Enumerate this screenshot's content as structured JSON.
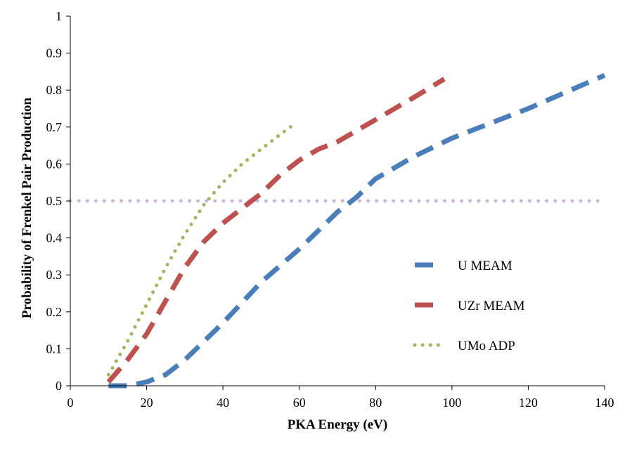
{
  "chart_data": {
    "type": "line",
    "xlabel": "PKA Energy (eV)",
    "ylabel": "Probability of Frenkel Pair Production",
    "xlim": [
      0,
      140
    ],
    "ylim": [
      0,
      1
    ],
    "x_ticks": [
      0,
      20,
      40,
      60,
      80,
      100,
      120,
      140
    ],
    "y_ticks": [
      0,
      0.1,
      0.2,
      0.3,
      0.4,
      0.5,
      0.6,
      0.7,
      0.8,
      0.9,
      1
    ],
    "y_tick_labels": [
      "0",
      "0.1",
      "0.2",
      "0.3",
      "0.4",
      "0.5",
      "0.6",
      "0.7",
      "0.8",
      "0.9",
      "1"
    ],
    "grid": false,
    "legend_position": "right",
    "reference_line": {
      "y": 0.5,
      "color": "#c9b8db"
    },
    "series": [
      {
        "name": "U MEAM",
        "color": "#4a7ebb",
        "style": "dashed",
        "x": [
          10,
          15,
          20,
          25,
          30,
          40,
          50,
          60,
          65,
          70,
          75,
          80,
          90,
          100,
          120,
          140
        ],
        "y": [
          0,
          0,
          0.01,
          0.03,
          0.07,
          0.17,
          0.28,
          0.37,
          0.42,
          0.47,
          0.51,
          0.56,
          0.62,
          0.67,
          0.75,
          0.84
        ]
      },
      {
        "name": "UZr MEAM",
        "color": "#c0504d",
        "style": "dashed",
        "x": [
          10,
          15,
          20,
          25,
          30,
          35,
          40,
          45,
          50,
          55,
          60,
          65,
          70,
          80,
          90,
          98
        ],
        "y": [
          0.01,
          0.07,
          0.14,
          0.23,
          0.32,
          0.39,
          0.44,
          0.48,
          0.52,
          0.57,
          0.61,
          0.64,
          0.66,
          0.72,
          0.78,
          0.83
        ]
      },
      {
        "name": "UMo ADP",
        "color": "#9bbb59",
        "style": "dotted",
        "x": [
          10,
          15,
          20,
          25,
          30,
          35,
          40,
          45,
          50,
          55,
          59
        ],
        "y": [
          0.03,
          0.12,
          0.22,
          0.32,
          0.41,
          0.49,
          0.55,
          0.6,
          0.64,
          0.68,
          0.71
        ]
      }
    ]
  }
}
